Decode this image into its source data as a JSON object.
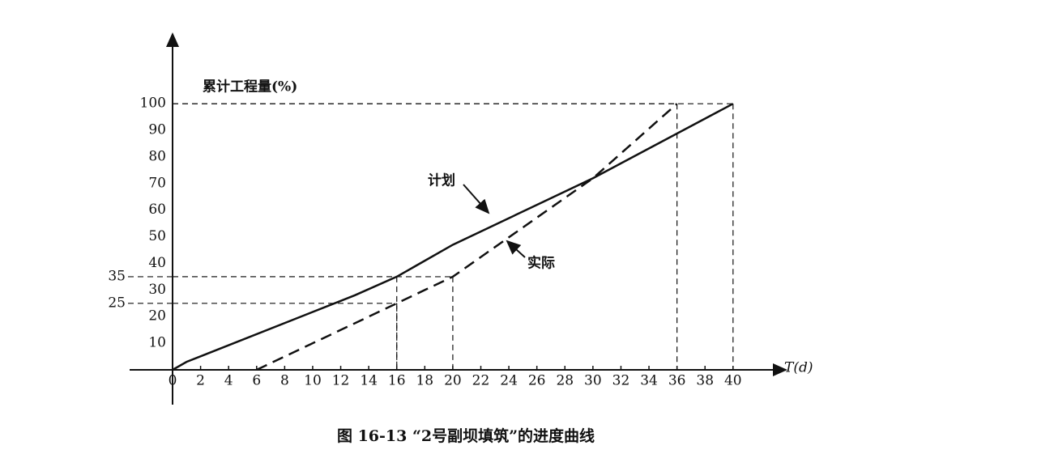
{
  "chart_data": {
    "type": "line",
    "caption": "图 16-13 “2号副坝填筑”的进度曲线",
    "y_axis_label": "累计工程量(%)",
    "x_axis_label": "T(d)",
    "xlim": [
      0,
      44
    ],
    "ylim": [
      0,
      125
    ],
    "xticks": [
      0,
      2,
      4,
      6,
      8,
      10,
      12,
      14,
      16,
      18,
      20,
      22,
      24,
      26,
      28,
      30,
      32,
      34,
      36,
      38,
      40
    ],
    "yticks": [
      10,
      20,
      30,
      40,
      50,
      60,
      70,
      80,
      90,
      100
    ],
    "extra_yticks": [
      35,
      25
    ],
    "guide_points": [
      {
        "x": 16,
        "y": 35
      },
      {
        "x": 20,
        "y": 35
      },
      {
        "x": 16,
        "y": 25
      },
      {
        "x": 36,
        "y": 100
      },
      {
        "x": 40,
        "y": 100
      }
    ],
    "series": [
      {
        "name": "计划",
        "color": "#111111",
        "dash": false,
        "x": [
          0,
          1,
          13,
          16,
          20,
          24,
          30,
          40
        ],
        "values": [
          0,
          3,
          28,
          35,
          47,
          57,
          72,
          100
        ]
      },
      {
        "name": "实际",
        "color": "#111111",
        "dash": true,
        "x": [
          6,
          16,
          20,
          30,
          36
        ],
        "values": [
          0,
          25,
          35,
          72,
          100
        ]
      }
    ]
  }
}
